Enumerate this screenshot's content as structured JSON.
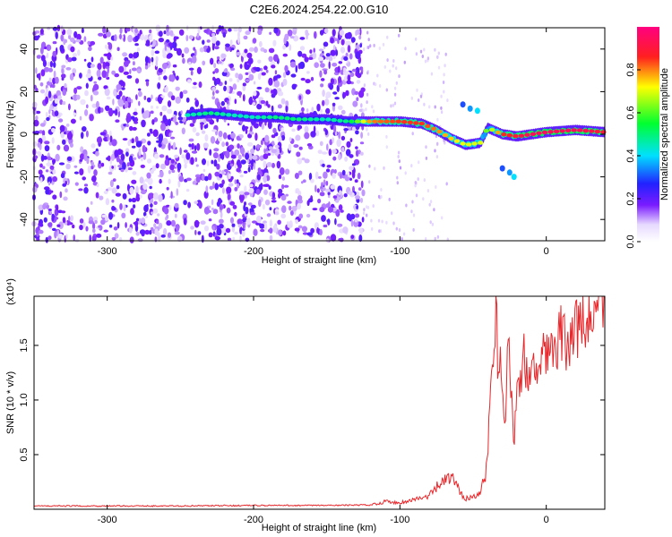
{
  "title": "C2E6.2024.254.22.00.G10",
  "colors": {
    "snr_line": "#e8262a"
  },
  "chart_data": [
    {
      "type": "heatmap",
      "title": "C2E6.2024.254.22.00.G10",
      "xlabel": "Height of straight line (km)",
      "ylabel": "Frequency (Hz)",
      "xlim": [
        -350,
        40
      ],
      "ylim": [
        -50,
        50
      ],
      "xticks": [
        -300,
        -200,
        -100,
        0
      ],
      "yticks": [
        -40,
        -20,
        0,
        20,
        40
      ],
      "colorbar": {
        "label": "Normalized spectral amplitude",
        "range": [
          0,
          1
        ],
        "ticks": [
          "0.0",
          "0.2",
          "0.4",
          "0.6",
          "0.8"
        ],
        "colormap": "rainbow (white, violet, blue, cyan, green, yellow, red, magenta)"
      },
      "ridge_trace": {
        "x": [
          -245,
          -230,
          -215,
          -200,
          -185,
          -170,
          -150,
          -135,
          -120,
          -100,
          -85,
          -75,
          -65,
          -55,
          -45,
          -40,
          -30,
          -20,
          -10,
          0,
          20,
          40
        ],
        "freq": [
          9,
          10,
          9,
          8,
          8,
          7,
          7,
          6,
          6,
          6,
          5,
          2,
          -2,
          -5,
          -4,
          3,
          0,
          -1,
          0,
          1,
          2,
          1
        ],
        "amplitude": [
          0.45,
          0.5,
          0.45,
          0.45,
          0.5,
          0.5,
          0.45,
          0.5,
          0.8,
          0.85,
          0.85,
          0.8,
          0.75,
          0.7,
          0.7,
          0.6,
          0.85,
          0.9,
          0.95,
          0.95,
          0.95,
          0.9
        ]
      },
      "side_features": [
        {
          "x": [
            -57,
            -52,
            -47
          ],
          "freq": [
            14,
            12,
            11
          ]
        },
        {
          "x": [
            -30,
            -25,
            -22
          ],
          "freq": [
            -16,
            -18,
            -20
          ]
        }
      ],
      "noise_region_xlim": [
        -350,
        -125
      ]
    },
    {
      "type": "line",
      "xlabel": "Height of straight line (km)",
      "ylabel": "SNR (10 * v/v)",
      "y_multiplier": "(x10⁴)",
      "xlim": [
        -350,
        40
      ],
      "ylim": [
        0,
        1.95
      ],
      "xticks": [
        -300,
        -200,
        -100,
        0
      ],
      "yticks": [
        "0.5",
        "1.0",
        "1.5"
      ],
      "series": [
        {
          "x": [
            -350,
            -300,
            -250,
            -200,
            -150,
            -120,
            -110,
            -100,
            -90,
            -80,
            -75,
            -70,
            -65,
            -60,
            -55,
            -50,
            -45,
            -40,
            -38,
            -36,
            -34,
            -33,
            -32,
            -30,
            -28,
            -26,
            -24,
            -22,
            -20,
            -18,
            -16,
            -14,
            -12,
            -10,
            -5,
            0,
            5,
            10,
            15,
            20,
            25,
            30,
            35,
            40
          ],
          "y": [
            0.03,
            0.03,
            0.03,
            0.035,
            0.035,
            0.04,
            0.07,
            0.06,
            0.09,
            0.12,
            0.2,
            0.25,
            0.3,
            0.18,
            0.1,
            0.12,
            0.15,
            0.4,
            1.2,
            1.6,
            1.95,
            1.2,
            1.5,
            1.0,
            0.8,
            1.55,
            1.1,
            0.6,
            1.3,
            1.0,
            1.5,
            1.2,
            1.3,
            1.45,
            1.3,
            1.5,
            1.4,
            1.6,
            1.5,
            1.65,
            1.7,
            1.75,
            1.8,
            1.85
          ]
        }
      ]
    }
  ]
}
